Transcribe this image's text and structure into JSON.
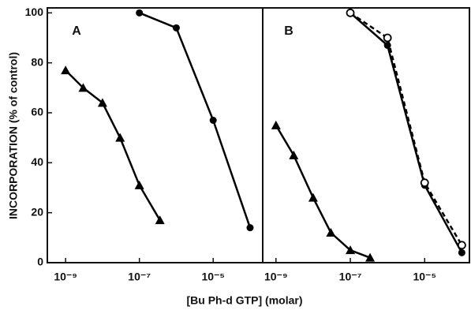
{
  "chart_data": [
    {
      "type": "line",
      "panel": "A",
      "ylabel": "INCORPORATION (% of control)",
      "xlabel": "[Bu Ph-d GTP] (molar)",
      "xscale": "log",
      "xlim": [
        3.2e-10,
        0.00022
      ],
      "xticks": [
        {
          "value": 1e-09,
          "label": "10⁻⁹"
        },
        {
          "value": 1e-07,
          "label": "10⁻⁷"
        },
        {
          "value": 1e-05,
          "label": "10⁻⁵"
        }
      ],
      "ylim": [
        0,
        102
      ],
      "yticks": [
        0,
        20,
        40,
        60,
        80,
        100
      ],
      "series": [
        {
          "color": "#000000",
          "marker": "triangle",
          "linestyle": "solid",
          "x": [
            1e-09,
            3e-09,
            1e-08,
            3e-08,
            1e-07,
            3.6e-07
          ],
          "values": [
            77,
            70,
            64,
            50,
            31,
            17
          ]
        },
        {
          "color": "#000000",
          "marker": "circle",
          "linestyle": "solid",
          "x": [
            1e-07,
            1e-06,
            1e-05,
            0.0001
          ],
          "values": [
            100,
            94,
            57,
            14
          ]
        }
      ]
    },
    {
      "type": "line",
      "panel": "B",
      "xscale": "log",
      "xlim": [
        4.4e-10,
        0.00016
      ],
      "xticks": [
        {
          "value": 1e-09,
          "label": "10⁻⁹"
        },
        {
          "value": 1e-07,
          "label": "10⁻⁷"
        },
        {
          "value": 1e-05,
          "label": "10⁻⁵"
        }
      ],
      "ylim": [
        0,
        102
      ],
      "series": [
        {
          "color": "#000000",
          "marker": "triangle",
          "linestyle": "solid",
          "x": [
            1e-09,
            3e-09,
            1e-08,
            3e-08,
            1e-07,
            3.4e-07
          ],
          "values": [
            55,
            43,
            26,
            12,
            5,
            2
          ]
        },
        {
          "color": "#000000",
          "marker": "circle",
          "linestyle": "solid",
          "x": [
            1e-07,
            1e-06,
            1e-05,
            0.0001
          ],
          "values": [
            100,
            87,
            31,
            4
          ]
        },
        {
          "color": "#000000",
          "marker": "open-circle",
          "linestyle": "dashed",
          "x": [
            1e-07,
            1e-06,
            1e-05,
            0.0001
          ],
          "values": [
            100,
            90,
            32,
            7
          ]
        }
      ]
    }
  ]
}
